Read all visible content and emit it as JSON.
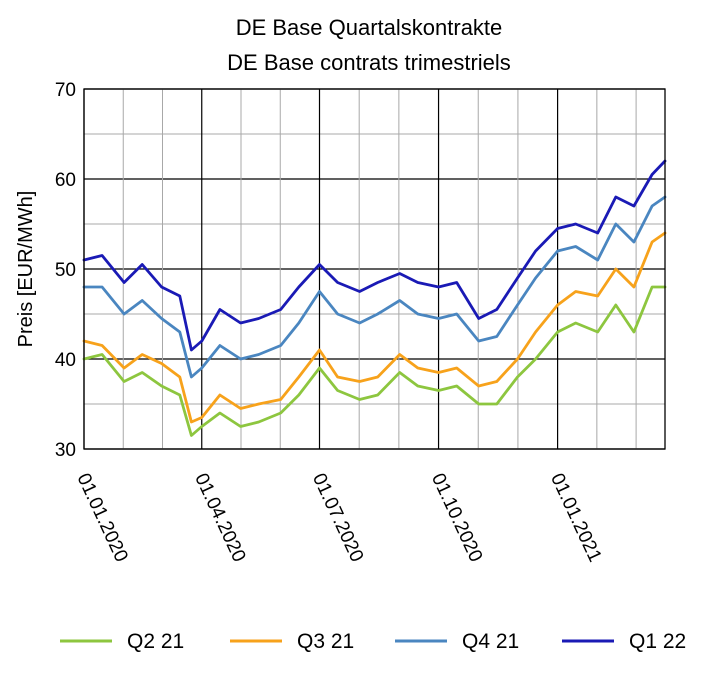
{
  "chart_data": {
    "type": "line",
    "title": [
      "DE Base Quartalskontrakte",
      "DE Base contrats trimestriels"
    ],
    "ylabel": "Preis [EUR/MWh]",
    "xlabel": "",
    "ylim": [
      30,
      70
    ],
    "yticks": [
      30,
      40,
      50,
      60,
      70
    ],
    "xlim": [
      "2020-01-01",
      "2021-03-25"
    ],
    "xticks": [
      "2020-01-01",
      "2020-04-01",
      "2020-07-01",
      "2020-10-01",
      "2021-01-01"
    ],
    "xtick_labels": [
      "01.01.2020",
      "01.04.2020",
      "01.07.2020",
      "01.10.2020",
      "01.01.2021"
    ],
    "grid": true,
    "legend_position": "bottom",
    "series": [
      {
        "name": "Q2 21",
        "color": "#8dc63f",
        "x": [
          "2020-01-01",
          "2020-01-15",
          "2020-02-01",
          "2020-02-15",
          "2020-03-01",
          "2020-03-15",
          "2020-03-24",
          "2020-04-01",
          "2020-04-15",
          "2020-05-01",
          "2020-05-15",
          "2020-06-01",
          "2020-06-15",
          "2020-07-01",
          "2020-07-15",
          "2020-08-01",
          "2020-08-15",
          "2020-09-01",
          "2020-09-15",
          "2020-10-01",
          "2020-10-15",
          "2020-11-01",
          "2020-11-15",
          "2020-12-01",
          "2020-12-15",
          "2021-01-01",
          "2021-01-15",
          "2021-02-01",
          "2021-02-15",
          "2021-03-01",
          "2021-03-15",
          "2021-03-25"
        ],
        "y": [
          40,
          40.5,
          37.5,
          38.5,
          37,
          36,
          31.5,
          32.5,
          34,
          32.5,
          33,
          34,
          36,
          39,
          36.5,
          35.5,
          36,
          38.5,
          37,
          36.5,
          37,
          35,
          35,
          38,
          40,
          43,
          44,
          43,
          46,
          43,
          48,
          48
        ]
      },
      {
        "name": "Q3 21",
        "color": "#f7a21b",
        "x": [
          "2020-01-01",
          "2020-01-15",
          "2020-02-01",
          "2020-02-15",
          "2020-03-01",
          "2020-03-15",
          "2020-03-24",
          "2020-04-01",
          "2020-04-15",
          "2020-05-01",
          "2020-05-15",
          "2020-06-01",
          "2020-06-15",
          "2020-07-01",
          "2020-07-15",
          "2020-08-01",
          "2020-08-15",
          "2020-09-01",
          "2020-09-15",
          "2020-10-01",
          "2020-10-15",
          "2020-11-01",
          "2020-11-15",
          "2020-12-01",
          "2020-12-15",
          "2021-01-01",
          "2021-01-15",
          "2021-02-01",
          "2021-02-15",
          "2021-03-01",
          "2021-03-15",
          "2021-03-25"
        ],
        "y": [
          42,
          41.5,
          39,
          40.5,
          39.5,
          38,
          33,
          33.5,
          36,
          34.5,
          35,
          35.5,
          38,
          41,
          38,
          37.5,
          38,
          40.5,
          39,
          38.5,
          39,
          37,
          37.5,
          40,
          43,
          46,
          47.5,
          47,
          50,
          48,
          53,
          54
        ]
      },
      {
        "name": "Q4 21",
        "color": "#4a86c0",
        "x": [
          "2020-01-01",
          "2020-01-15",
          "2020-02-01",
          "2020-02-15",
          "2020-03-01",
          "2020-03-15",
          "2020-03-24",
          "2020-04-01",
          "2020-04-15",
          "2020-05-01",
          "2020-05-15",
          "2020-06-01",
          "2020-06-15",
          "2020-07-01",
          "2020-07-15",
          "2020-08-01",
          "2020-08-15",
          "2020-09-01",
          "2020-09-15",
          "2020-10-01",
          "2020-10-15",
          "2020-11-01",
          "2020-11-15",
          "2020-12-01",
          "2020-12-15",
          "2021-01-01",
          "2021-01-15",
          "2021-02-01",
          "2021-02-15",
          "2021-03-01",
          "2021-03-15",
          "2021-03-25"
        ],
        "y": [
          48,
          48,
          45,
          46.5,
          44.5,
          43,
          38,
          39,
          41.5,
          40,
          40.5,
          41.5,
          44,
          47.5,
          45,
          44,
          45,
          46.5,
          45,
          44.5,
          45,
          42,
          42.5,
          46,
          49,
          52,
          52.5,
          51,
          55,
          53,
          57,
          58
        ]
      },
      {
        "name": "Q1 22",
        "color": "#1a1ab5",
        "x": [
          "2020-01-01",
          "2020-01-15",
          "2020-02-01",
          "2020-02-15",
          "2020-03-01",
          "2020-03-15",
          "2020-03-24",
          "2020-04-01",
          "2020-04-15",
          "2020-05-01",
          "2020-05-15",
          "2020-06-01",
          "2020-06-15",
          "2020-07-01",
          "2020-07-15",
          "2020-08-01",
          "2020-08-15",
          "2020-09-01",
          "2020-09-15",
          "2020-10-01",
          "2020-10-15",
          "2020-11-01",
          "2020-11-15",
          "2020-12-01",
          "2020-12-15",
          "2021-01-01",
          "2021-01-15",
          "2021-02-01",
          "2021-02-15",
          "2021-03-01",
          "2021-03-15",
          "2021-03-25"
        ],
        "y": [
          51,
          51.5,
          48.5,
          50.5,
          48,
          47,
          41,
          42,
          45.5,
          44,
          44.5,
          45.5,
          48,
          50.5,
          48.5,
          47.5,
          48.5,
          49.5,
          48.5,
          48,
          48.5,
          44.5,
          45.5,
          49,
          52,
          54.5,
          55,
          54,
          58,
          57,
          60.5,
          62
        ]
      }
    ]
  }
}
